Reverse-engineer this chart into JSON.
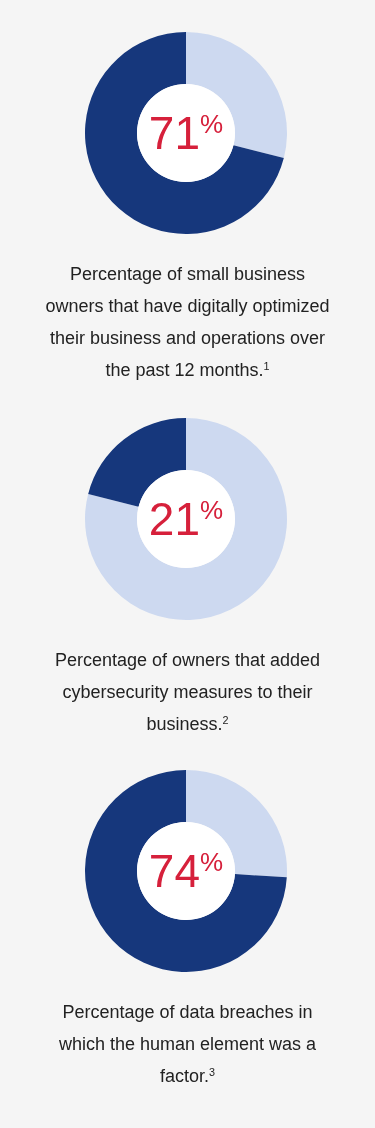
{
  "chart_data": [
    {
      "type": "donut",
      "title": "Percentage of small business owners that have digitally optimized their business and operations over the past 12 months.$^{1}$",
      "categories": [
        null,
        null
      ],
      "values": [
        29,
        71
      ],
      "colors": [
        "#cdd9f0",
        "#16377c"
      ],
      "annotations": [
        "71$^{%}$"
      ]
    },
    {
      "type": "donut",
      "title": "Percentage of owners that added cybersecurity measures to their business.$^{2}$",
      "categories": [
        null,
        null
      ],
      "values": [
        79,
        21
      ],
      "colors": [
        "#cdd9f0",
        "#16377c"
      ],
      "annotations": [
        "21$^{%}$"
      ]
    },
    {
      "type": "donut",
      "title": "Percentage of data breaches in which the human element was a factor.$^{3}$",
      "categories": [
        null,
        null
      ],
      "values": [
        26,
        74
      ],
      "colors": [
        "#cdd9f0",
        "#16377c"
      ],
      "annotations": [
        "74$^{%}$"
      ]
    }
  ]
}
